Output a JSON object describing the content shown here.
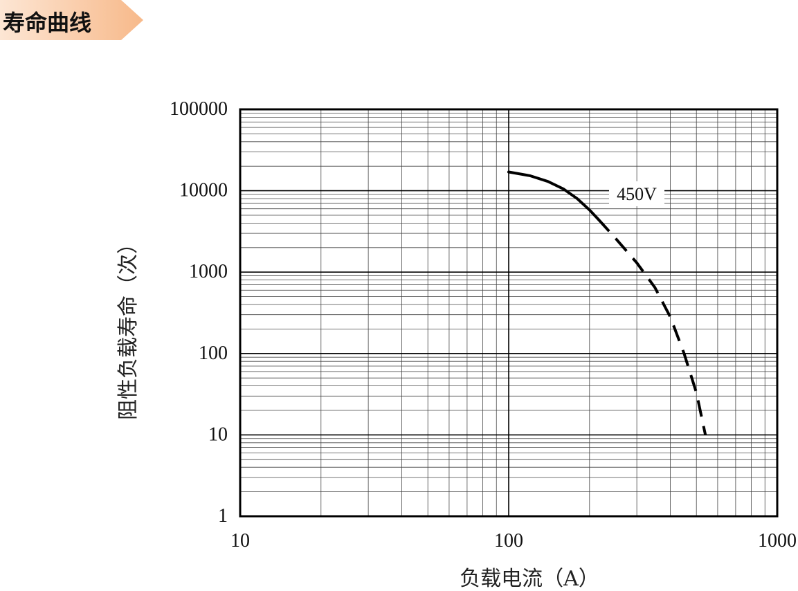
{
  "header": {
    "title": "寿命曲线"
  },
  "colors": {
    "banner_start": "#f7b98a",
    "banner_end": "#fde6d4",
    "line": "#000000",
    "grid": "#444444"
  },
  "chart_data": {
    "type": "line",
    "title": "",
    "xlabel": "负载电流（A）",
    "ylabel": "阻性负载寿命（次）",
    "x_scale": "log",
    "y_scale": "log",
    "xlim": [
      10,
      1000
    ],
    "ylim": [
      1,
      100000
    ],
    "x_ticks": [
      "10",
      "100",
      "1000"
    ],
    "y_ticks": [
      "1",
      "10",
      "100",
      "1000",
      "10000",
      "100000"
    ],
    "grid": true,
    "series": [
      {
        "name": "450V",
        "solid": {
          "x": [
            100,
            120,
            140,
            160,
            180,
            200,
            215
          ],
          "y": [
            17000,
            15300,
            13000,
            10500,
            8000,
            5800,
            4500
          ]
        },
        "dashed": {
          "x": [
            215,
            250,
            300,
            350,
            400,
            450,
            500,
            540
          ],
          "y": [
            4500,
            2600,
            1300,
            650,
            280,
            100,
            33,
            10
          ]
        }
      }
    ]
  }
}
